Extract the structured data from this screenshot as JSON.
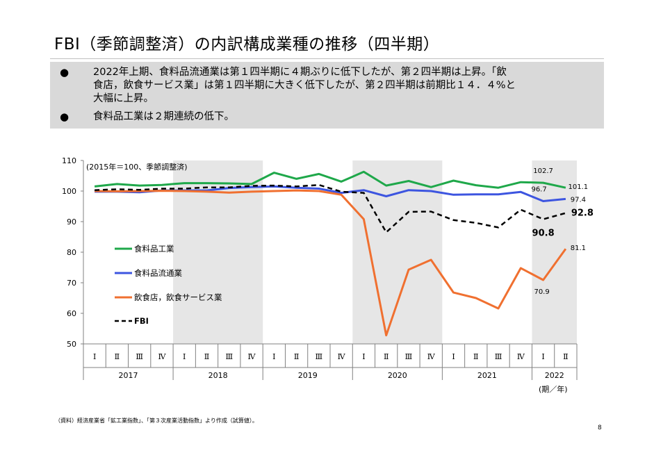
{
  "title": "FBI（季節調整済）の内訳構成業種の推移（四半期）",
  "summary": {
    "bullets": [
      {
        "marker": "●",
        "lines": [
          "2022年上期、食料品流通業は第１四半期に４期ぶりに低下したが、第２四半期は上昇。「飲",
          "食店，飲食サービス業」は第１四半期に大きく低下したが、第２四半期は前期比１４．４%と",
          "大幅に上昇。"
        ]
      },
      {
        "marker": "●",
        "lines": [
          "食料品工業は２期連続の低下。"
        ]
      }
    ]
  },
  "source": "（資料）経済産業省「鉱工業指数」、「第３次産業活動指数」より作成（試算値）。",
  "page_number": "8",
  "chart_data": {
    "type": "line",
    "unit_note": "(2015年＝100、季節調整済)",
    "xlabel": "(期／年)",
    "ylim": [
      50,
      110
    ],
    "yticks": [
      50,
      60,
      70,
      80,
      90,
      100,
      110
    ],
    "x": [
      "2017-Q1",
      "2017-Q2",
      "2017-Q3",
      "2017-Q4",
      "2018-Q1",
      "2018-Q2",
      "2018-Q3",
      "2018-Q4",
      "2019-Q1",
      "2019-Q2",
      "2019-Q3",
      "2019-Q4",
      "2020-Q1",
      "2020-Q2",
      "2020-Q3",
      "2020-Q4",
      "2021-Q1",
      "2021-Q2",
      "2021-Q3",
      "2021-Q4",
      "2022-Q1",
      "2022-Q2"
    ],
    "quarter_labels": [
      "Ⅰ",
      "Ⅱ",
      "Ⅲ",
      "Ⅳ",
      "Ⅰ",
      "Ⅱ",
      "Ⅲ",
      "Ⅳ",
      "Ⅰ",
      "Ⅱ",
      "Ⅲ",
      "Ⅳ",
      "Ⅰ",
      "Ⅱ",
      "Ⅲ",
      "Ⅳ",
      "Ⅰ",
      "Ⅱ",
      "Ⅲ",
      "Ⅳ",
      "Ⅰ",
      "Ⅱ"
    ],
    "years": [
      {
        "label": "2017",
        "quarters": 4
      },
      {
        "label": "2018",
        "quarters": 4
      },
      {
        "label": "2019",
        "quarters": 4
      },
      {
        "label": "2020",
        "quarters": 4
      },
      {
        "label": "2021",
        "quarters": 4
      },
      {
        "label": "2022",
        "quarters": 2
      }
    ],
    "shaded_years": [
      "2018",
      "2020",
      "2022"
    ],
    "series": [
      {
        "name": "食料品工業",
        "color": "#1fa84a",
        "dash": false,
        "values": [
          101.5,
          102.3,
          101.8,
          102.0,
          102.6,
          102.6,
          102.5,
          102.3,
          106.0,
          104.0,
          105.6,
          103.1,
          106.3,
          101.8,
          103.3,
          101.3,
          103.4,
          101.9,
          101.1,
          102.9,
          102.7,
          101.1
        ]
      },
      {
        "name": "食料品流通業",
        "color": "#3d55e0",
        "dash": false,
        "values": [
          99.8,
          99.8,
          99.6,
          100.2,
          100.2,
          100.2,
          101.0,
          101.3,
          101.5,
          101.1,
          100.8,
          99.4,
          100.3,
          98.3,
          100.3,
          100.0,
          98.8,
          98.9,
          98.9,
          99.7,
          96.7,
          97.4
        ]
      },
      {
        "name": "飲食店，飲食サービス業",
        "color": "#f07030",
        "dash": false,
        "values": [
          100.0,
          99.9,
          100.0,
          100.1,
          100.0,
          99.8,
          99.5,
          99.8,
          100.0,
          100.2,
          100.0,
          98.8,
          90.8,
          52.8,
          74.3,
          77.5,
          66.8,
          65.0,
          61.6,
          74.8,
          70.9,
          81.1
        ]
      },
      {
        "name": "FBI",
        "color": "#000000",
        "dash": true,
        "values": [
          100.3,
          100.6,
          100.4,
          100.8,
          100.8,
          101.2,
          101.2,
          101.7,
          101.8,
          101.5,
          102.0,
          99.8,
          99.4,
          86.5,
          93.2,
          93.3,
          90.5,
          89.6,
          88.1,
          93.9,
          90.8,
          92.8
        ]
      }
    ],
    "data_labels": [
      {
        "text": "102.7",
        "series": 0,
        "index": 20
      },
      {
        "text": "101.1",
        "series": 0,
        "index": 21
      },
      {
        "text": "96.7",
        "series": 1,
        "index": 20
      },
      {
        "text": "97.4",
        "series": 1,
        "index": 21
      },
      {
        "text": "90.8",
        "series": 3,
        "index": 20
      },
      {
        "text": "92.8",
        "series": 3,
        "index": 21
      },
      {
        "text": "70.9",
        "series": 2,
        "index": 20
      },
      {
        "text": "81.1",
        "series": 2,
        "index": 21
      }
    ],
    "legend_position": "left-middle",
    "grid": false
  }
}
